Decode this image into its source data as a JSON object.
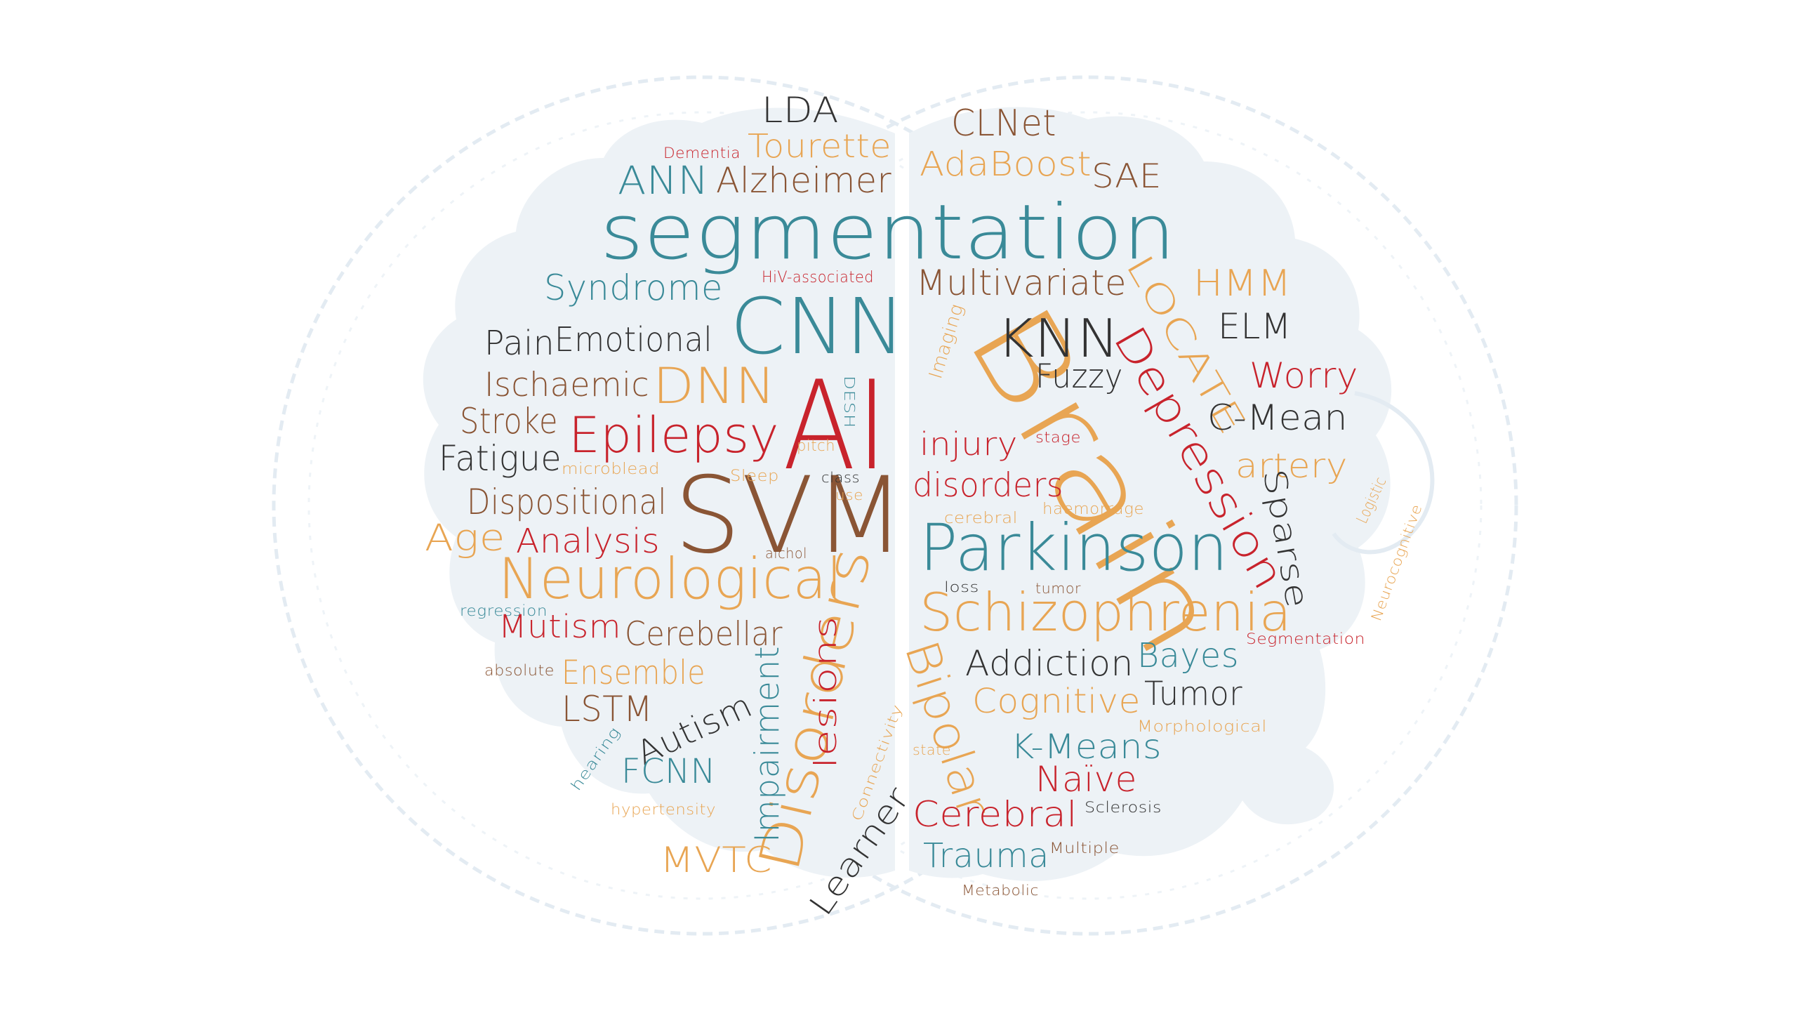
{
  "colors": {
    "teal": "#3a8a98",
    "red": "#c8232c",
    "orange": "#e8a553",
    "brown": "#8a5535",
    "dark": "#333333",
    "background": "#ffffff",
    "brain_fill": "#edf2f6",
    "ring": "#e3ebf2"
  },
  "words": [
    {
      "text": "segmentation",
      "color": "#3a8a98"
    },
    {
      "text": "AI",
      "color": "#c8232c"
    },
    {
      "text": "SVM",
      "color": "#8a5535"
    },
    {
      "text": "Brain",
      "color": "#e8a553"
    },
    {
      "text": "CNN",
      "color": "#3a8a98"
    },
    {
      "text": "Parkinson",
      "color": "#3a8a98"
    },
    {
      "text": "Schizophrenia",
      "color": "#e8a553"
    },
    {
      "text": "Neurological",
      "color": "#e8a553"
    },
    {
      "text": "Disorders",
      "color": "#e8a553"
    },
    {
      "text": "Depression",
      "color": "#c8232c"
    },
    {
      "text": "Bipolar",
      "color": "#e8a553"
    },
    {
      "text": "LDA",
      "color": "#333333"
    },
    {
      "text": "Dementia",
      "color": "#c8232c"
    },
    {
      "text": "Tourette",
      "color": "#e8a553"
    },
    {
      "text": "ANN",
      "color": "#3a8a98"
    },
    {
      "text": "Alzheimer",
      "color": "#8a5535"
    },
    {
      "text": "CLNet",
      "color": "#8a5535"
    },
    {
      "text": "AdaBoost",
      "color": "#e8a553"
    },
    {
      "text": "SAE",
      "color": "#8a5535"
    },
    {
      "text": "Syndrome",
      "color": "#3a8a98"
    },
    {
      "text": "HiV-associated",
      "color": "#c8232c"
    },
    {
      "text": "Multivariate",
      "color": "#8a5535"
    },
    {
      "text": "LOCATE",
      "color": "#e8a553"
    },
    {
      "text": "HMM",
      "color": "#e8a553"
    },
    {
      "text": "Pain",
      "color": "#333333"
    },
    {
      "text": "Emotional",
      "color": "#333333"
    },
    {
      "text": "KNN",
      "color": "#333333"
    },
    {
      "text": "ELM",
      "color": "#333333"
    },
    {
      "text": "Imaging",
      "color": "#e8a553"
    },
    {
      "text": "Ischaemic",
      "color": "#8a5535"
    },
    {
      "text": "DNN",
      "color": "#e8a553"
    },
    {
      "text": "Fuzzy",
      "color": "#333333"
    },
    {
      "text": "Worry",
      "color": "#c8232c"
    },
    {
      "text": "DESH",
      "color": "#3a8a98"
    },
    {
      "text": "Stroke",
      "color": "#8a5535"
    },
    {
      "text": "Epilepsy",
      "color": "#c8232c"
    },
    {
      "text": "C-Mean",
      "color": "#333333"
    },
    {
      "text": "pitch",
      "color": "#e8a553"
    },
    {
      "text": "injury",
      "color": "#c8232c"
    },
    {
      "text": "stage",
      "color": "#c8232c"
    },
    {
      "text": "Fatigue",
      "color": "#333333"
    },
    {
      "text": "microblead",
      "color": "#e8a553"
    },
    {
      "text": "Sleep",
      "color": "#e8a553"
    },
    {
      "text": "class",
      "color": "#333333"
    },
    {
      "text": "use",
      "color": "#e8a553"
    },
    {
      "text": "disorders",
      "color": "#c8232c"
    },
    {
      "text": "artery",
      "color": "#e8a553"
    },
    {
      "text": "Dispositional",
      "color": "#8a5535"
    },
    {
      "text": "cerebral",
      "color": "#e8a553"
    },
    {
      "text": "haemorrage",
      "color": "#e8a553"
    },
    {
      "text": "Sparse",
      "color": "#333333"
    },
    {
      "text": "Logistic",
      "color": "#e8a553"
    },
    {
      "text": "Age",
      "color": "#e8a553"
    },
    {
      "text": "Analysis",
      "color": "#c8232c"
    },
    {
      "text": "alchol",
      "color": "#8a5535"
    },
    {
      "text": "Neurocognitive",
      "color": "#e8a553"
    },
    {
      "text": "loss",
      "color": "#333333"
    },
    {
      "text": "tumor",
      "color": "#8a5535"
    },
    {
      "text": "regression",
      "color": "#3a8a98"
    },
    {
      "text": "Mutism",
      "color": "#c8232c"
    },
    {
      "text": "Cerebellar",
      "color": "#8a5535"
    },
    {
      "text": "Segmentation",
      "color": "#c8232c"
    },
    {
      "text": "absolute",
      "color": "#8a5535"
    },
    {
      "text": "Ensemble",
      "color": "#e8a553"
    },
    {
      "text": "Addiction",
      "color": "#333333"
    },
    {
      "text": "Bayes",
      "color": "#3a8a98"
    },
    {
      "text": "LSTM",
      "color": "#8a5535"
    },
    {
      "text": "Impairment",
      "color": "#3a8a98"
    },
    {
      "text": "lesions",
      "color": "#c8232c"
    },
    {
      "text": "Cognitive",
      "color": "#e8a553"
    },
    {
      "text": "Tumor",
      "color": "#333333"
    },
    {
      "text": "Autism",
      "color": "#333333"
    },
    {
      "text": "Morphological",
      "color": "#e8a553"
    },
    {
      "text": "hearing",
      "color": "#3a8a98"
    },
    {
      "text": "Connectivity",
      "color": "#e8a553"
    },
    {
      "text": "state",
      "color": "#e8a553"
    },
    {
      "text": "K-Means",
      "color": "#3a8a98"
    },
    {
      "text": "FCNN",
      "color": "#3a8a98"
    },
    {
      "text": "Naïve",
      "color": "#c8232c"
    },
    {
      "text": "hypertensity",
      "color": "#e8a553"
    },
    {
      "text": "Sclerosis",
      "color": "#333333"
    },
    {
      "text": "Cerebral",
      "color": "#c8232c"
    },
    {
      "text": "Learner",
      "color": "#333333"
    },
    {
      "text": "Multiple",
      "color": "#8a5535"
    },
    {
      "text": "MVTC",
      "color": "#e8a553"
    },
    {
      "text": "Trauma",
      "color": "#3a8a98"
    },
    {
      "text": "Metabolic",
      "color": "#8a5535"
    }
  ]
}
